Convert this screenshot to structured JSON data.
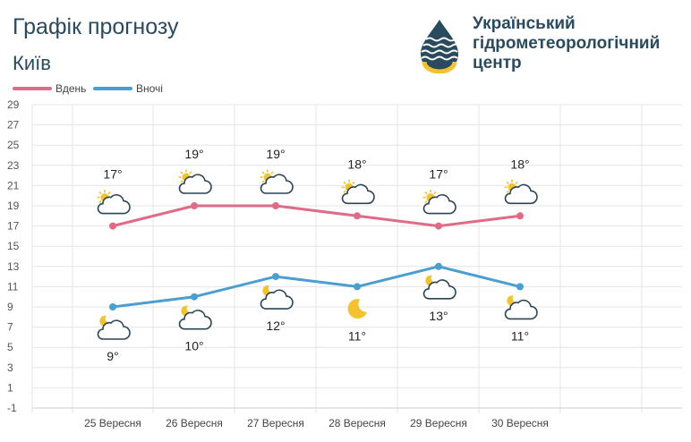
{
  "header": {
    "title": "Графік прогнозу",
    "city": "Київ",
    "org_lines": [
      "Український",
      "гідрометеорологічний",
      "центр"
    ]
  },
  "legend": [
    {
      "label": "Вдень",
      "color": "#e06b88"
    },
    {
      "label": "Вночі",
      "color": "#4a9ed0"
    }
  ],
  "chart_data": {
    "type": "line",
    "categories": [
      "25 Вересня",
      "26 Вересня",
      "27 Вересня",
      "28 Вересня",
      "29 Вересня",
      "30 Вересня"
    ],
    "series": [
      {
        "name": "Вдень",
        "color": "#e06b88",
        "values": [
          17,
          19,
          19,
          18,
          17,
          18
        ],
        "labels": [
          "17°",
          "19°",
          "19°",
          "18°",
          "17°",
          "18°"
        ],
        "icons": [
          "sun-cloud-icon",
          "sun-cloud-icon",
          "sun-cloud-icon",
          "sun-cloud-icon",
          "sun-cloud-icon",
          "sun-cloud-icon"
        ]
      },
      {
        "name": "Вночі",
        "color": "#4a9ed0",
        "values": [
          9,
          10,
          12,
          11,
          13,
          11
        ],
        "labels": [
          "9°",
          "10°",
          "12°",
          "11°",
          "13°",
          "11°"
        ],
        "icons": [
          "moon-cloud-icon",
          "moon-cloud-icon",
          "moon-cloud-icon",
          "moon-icon",
          "moon-cloud-icon",
          "moon-cloud-icon"
        ]
      }
    ],
    "ylim": [
      -1,
      29
    ],
    "yticks": [
      "-1",
      "1",
      "3",
      "5",
      "7",
      "9",
      "11",
      "13",
      "15",
      "17",
      "19",
      "21",
      "23",
      "25",
      "27",
      "29"
    ],
    "grid": true,
    "legend_position": "top-left",
    "title": "",
    "xlabel": "",
    "ylabel": ""
  }
}
